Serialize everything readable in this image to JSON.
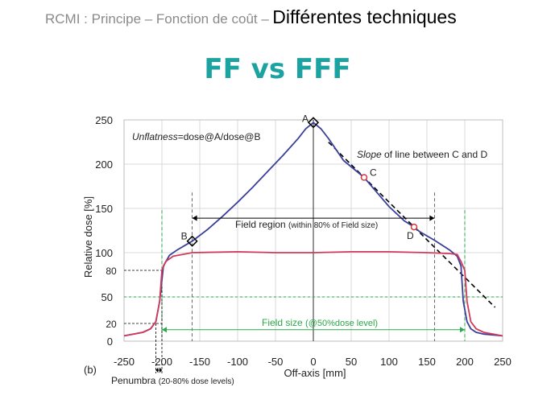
{
  "slide": {
    "header_small": "RCMI : Principe – Fonction de coût –",
    "header_big": "Différentes techniques",
    "subtitle": "FF vs FFF"
  },
  "colors": {
    "fff_curve": "#3a3f9a",
    "ff_curve": "#d23a5c",
    "green": "#2aa84a",
    "grid": "#d9d9d9",
    "subtitle": "#1aa3a0"
  },
  "chart_data": {
    "type": "line",
    "xlabel": "Off-axis [mm]",
    "ylabel": "Relative dose [%]",
    "xlim": [
      -250,
      250
    ],
    "ylim": [
      0,
      250
    ],
    "x_ticks": [
      -250,
      -200,
      -150,
      -100,
      -50,
      0,
      50,
      100,
      150,
      200,
      250
    ],
    "y_ticks": [
      0,
      50,
      100,
      150,
      200,
      250
    ],
    "extra_y_labels": [
      20,
      80
    ],
    "grid": true,
    "panel_label": "(b)",
    "series": [
      {
        "color": "#3a3f9a",
        "x": [
          -250,
          -225,
          -215,
          -208,
          -203,
          -198,
          -190,
          -180,
          -160,
          -140,
          -120,
          -100,
          -80,
          -60,
          -40,
          -20,
          -10,
          0,
          10,
          20,
          40,
          60,
          67,
          80,
          100,
          120,
          133,
          140,
          160,
          180,
          190,
          195,
          198,
          203,
          208,
          215,
          225,
          250
        ],
        "y": [
          6,
          10,
          14,
          22,
          45,
          85,
          97,
          103,
          113,
          126,
          141,
          157,
          174,
          192,
          210,
          229,
          240,
          247,
          240,
          229,
          204,
          190,
          185,
          172,
          152,
          136,
          129,
          124,
          114,
          103,
          96,
          85,
          45,
          22,
          14,
          10,
          8,
          6
        ]
      },
      {
        "color": "#d23a5c",
        "x": [
          -250,
          -225,
          -215,
          -208,
          -203,
          -200,
          -195,
          -185,
          -160,
          -100,
          -50,
          0,
          50,
          100,
          150,
          180,
          190,
          195,
          200,
          203,
          208,
          215,
          225,
          250
        ],
        "y": [
          6,
          10,
          14,
          22,
          45,
          80,
          90,
          96,
          100,
          101,
          100,
          100,
          101,
          101,
          100,
          99,
          98,
          90,
          80,
          45,
          22,
          14,
          10,
          6
        ]
      }
    ],
    "markers": [
      {
        "label": "A",
        "x": 0,
        "y": 247,
        "shape": "diamond"
      },
      {
        "label": "B",
        "x": -160,
        "y": 113,
        "shape": "diamond"
      },
      {
        "label": "C",
        "x": 67,
        "y": 185,
        "shape": "circle"
      },
      {
        "label": "D",
        "x": 133,
        "y": 129,
        "shape": "circle"
      }
    ],
    "annotations": {
      "unflatness_italic": "Unflatness",
      "unflatness_rest": "=dose@A/dose@B",
      "slope_italic": "Slope",
      "slope_rest": " of line between C and D",
      "field_region": "Field region",
      "field_region_note": "(within 80% of Field size)",
      "field_size": "Field size",
      "field_size_note": "(@50%dose level)",
      "penumbra": "Penumbra",
      "penumbra_note": "(20-80% dose levels)"
    }
  }
}
